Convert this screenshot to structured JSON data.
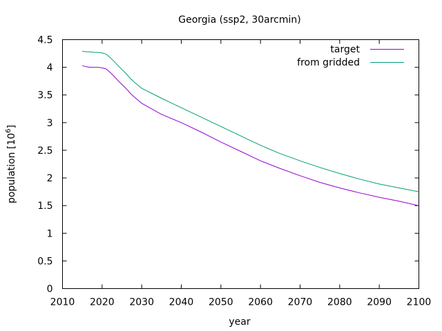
{
  "chart_data": {
    "type": "line",
    "title": "Georgia (ssp2, 30arcmin)",
    "xlabel": "year",
    "ylabel_text": "population [10",
    "ylabel_sup": "6",
    "ylabel_close": "]",
    "xlim": [
      2010,
      2100
    ],
    "ylim": [
      0,
      4.5
    ],
    "xticks": [
      2010,
      2020,
      2030,
      2040,
      2050,
      2060,
      2070,
      2080,
      2090,
      2100
    ],
    "yticks": [
      0,
      0.5,
      1,
      1.5,
      2,
      2.5,
      3,
      3.5,
      4,
      4.5
    ],
    "ytick_labels": [
      "0",
      "0.5",
      "1",
      "1.5",
      "2",
      "2.5",
      "3",
      "3.5",
      "4",
      "4.5"
    ],
    "grid": false,
    "legend_position": "top-right",
    "series": [
      {
        "name": "target",
        "color": "#9400d3",
        "x": [
          2015,
          2016,
          2017,
          2018,
          2019,
          2020,
          2021,
          2022,
          2023,
          2024,
          2025,
          2026,
          2027,
          2028,
          2029,
          2030,
          2035,
          2040,
          2045,
          2050,
          2055,
          2060,
          2065,
          2070,
          2075,
          2080,
          2085,
          2090,
          2095,
          2100
        ],
        "y": [
          4.03,
          4.01,
          4.0,
          4.0,
          4.0,
          3.99,
          3.97,
          3.91,
          3.84,
          3.76,
          3.69,
          3.62,
          3.54,
          3.47,
          3.41,
          3.35,
          3.15,
          3.0,
          2.83,
          2.65,
          2.48,
          2.31,
          2.17,
          2.04,
          1.92,
          1.82,
          1.73,
          1.65,
          1.58,
          1.5
        ]
      },
      {
        "name": "from gridded",
        "color": "#009e73",
        "x": [
          2015,
          2016,
          2017,
          2018,
          2019,
          2020,
          2021,
          2022,
          2023,
          2024,
          2025,
          2026,
          2027,
          2028,
          2029,
          2030,
          2035,
          2040,
          2045,
          2050,
          2055,
          2060,
          2065,
          2070,
          2075,
          2080,
          2085,
          2090,
          2095,
          2100
        ],
        "y": [
          4.29,
          4.28,
          4.28,
          4.27,
          4.27,
          4.26,
          4.24,
          4.18,
          4.11,
          4.03,
          3.96,
          3.89,
          3.81,
          3.74,
          3.68,
          3.62,
          3.44,
          3.27,
          3.1,
          2.93,
          2.76,
          2.59,
          2.44,
          2.31,
          2.19,
          2.08,
          1.98,
          1.89,
          1.82,
          1.75
        ]
      }
    ]
  }
}
